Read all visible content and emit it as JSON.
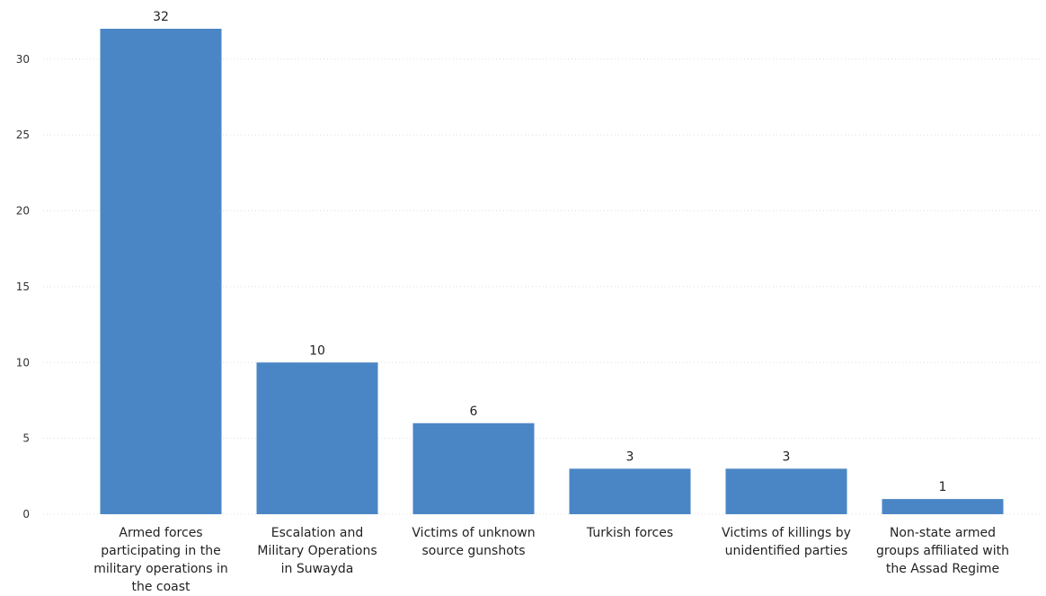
{
  "chart_data": {
    "type": "bar",
    "categories": [
      "Armed forces participating in the military operations in the coast",
      "Escalation and Military Operations in Suwayda",
      "Victims of unknown source gunshots",
      "Turkish forces",
      "Victims of killings by unidentified parties",
      "Non-state armed groups affiliated with the Assad Regime"
    ],
    "values": [
      32,
      10,
      6,
      3,
      3,
      1
    ],
    "title": "",
    "xlabel": "",
    "ylabel": "",
    "ylim": [
      0,
      32
    ],
    "yticks": [
      0,
      5,
      10,
      15,
      20,
      25,
      30
    ],
    "grid": true,
    "legend": "none",
    "bar_color": "#4a86c5"
  }
}
